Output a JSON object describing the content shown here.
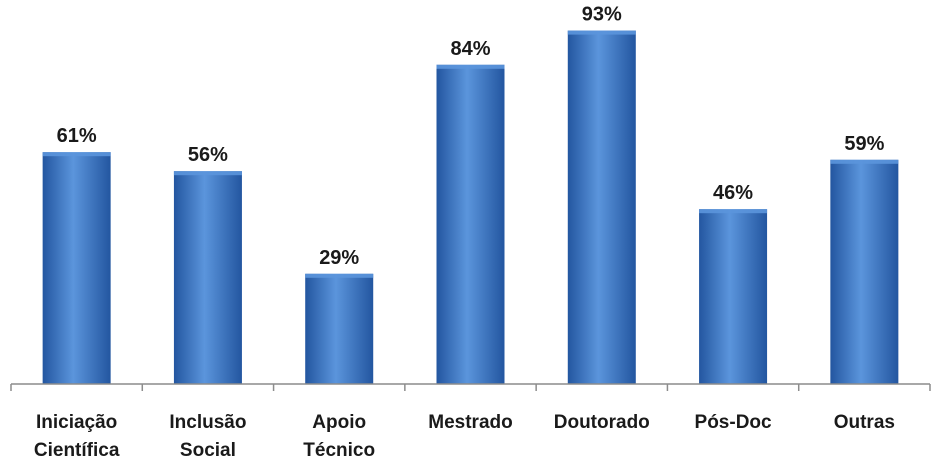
{
  "chart_data": {
    "type": "bar",
    "categories": [
      [
        "Iniciação",
        "Científica"
      ],
      [
        "Inclusão",
        "Social"
      ],
      [
        "Apoio",
        "Técnico"
      ],
      [
        "Mestrado"
      ],
      [
        "Doutorado"
      ],
      [
        "Pós-Doc"
      ],
      [
        "Outras"
      ]
    ],
    "values": [
      61,
      56,
      29,
      84,
      93,
      46,
      59
    ],
    "data_labels": [
      "61%",
      "56%",
      "29%",
      "84%",
      "93%",
      "46%",
      "59%"
    ],
    "ylim": [
      0,
      100
    ],
    "grid": false,
    "legend": "none",
    "title": "",
    "xlabel": "",
    "ylabel": "",
    "colors": {
      "bar": "#3A75C4",
      "bar_light": "#5B95DC",
      "bar_dark": "#2356A0",
      "axis": "#8c8c8c"
    }
  }
}
